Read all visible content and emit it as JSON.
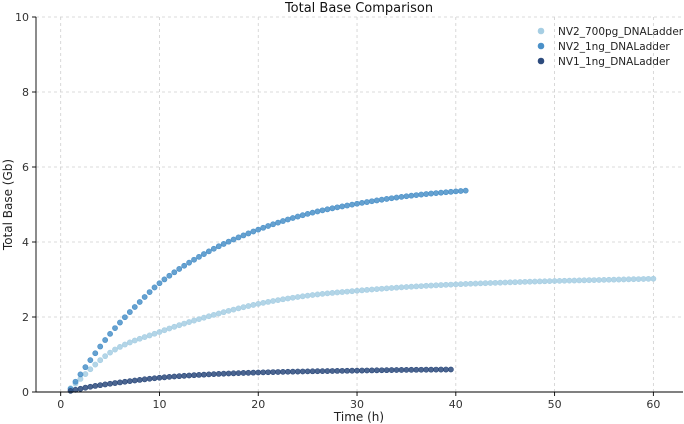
{
  "chart_data": {
    "type": "scatter",
    "title": "Total Base Comparison",
    "xlabel": "Time (h)",
    "ylabel": "Total Base (Gb)",
    "xlim": [
      -2.5,
      63
    ],
    "ylim": [
      0,
      10
    ],
    "xticks": [
      0,
      10,
      20,
      30,
      40,
      50,
      60
    ],
    "yticks": [
      0,
      2,
      4,
      6,
      8,
      10
    ],
    "grid": true,
    "legend_position": "top-right",
    "point_interval_h": 0.5,
    "series": [
      {
        "name": "NV2_700pg_DNALadder",
        "color": "#a6cee3",
        "x": [
          1,
          5,
          10,
          15,
          20,
          25,
          30,
          35,
          40,
          45,
          50,
          55,
          60
        ],
        "y": [
          0.1,
          1.05,
          1.6,
          2.02,
          2.35,
          2.57,
          2.7,
          2.8,
          2.87,
          2.92,
          2.96,
          2.99,
          3.02
        ]
      },
      {
        "name": "NV2_1ng_DNALadder",
        "color": "#4a90c8",
        "x": [
          1,
          3,
          5,
          8,
          10,
          15,
          20,
          25,
          30,
          35,
          40,
          41
        ],
        "y": [
          0.08,
          0.85,
          1.55,
          2.4,
          2.9,
          3.75,
          4.33,
          4.75,
          5.02,
          5.22,
          5.35,
          5.37
        ]
      },
      {
        "name": "NV1_1ng_DNALadder",
        "color": "#2c4a7c",
        "x": [
          1,
          3,
          5,
          10,
          15,
          20,
          25,
          30,
          35,
          39.5
        ],
        "y": [
          0.03,
          0.14,
          0.22,
          0.38,
          0.47,
          0.52,
          0.55,
          0.57,
          0.59,
          0.6
        ]
      }
    ]
  }
}
